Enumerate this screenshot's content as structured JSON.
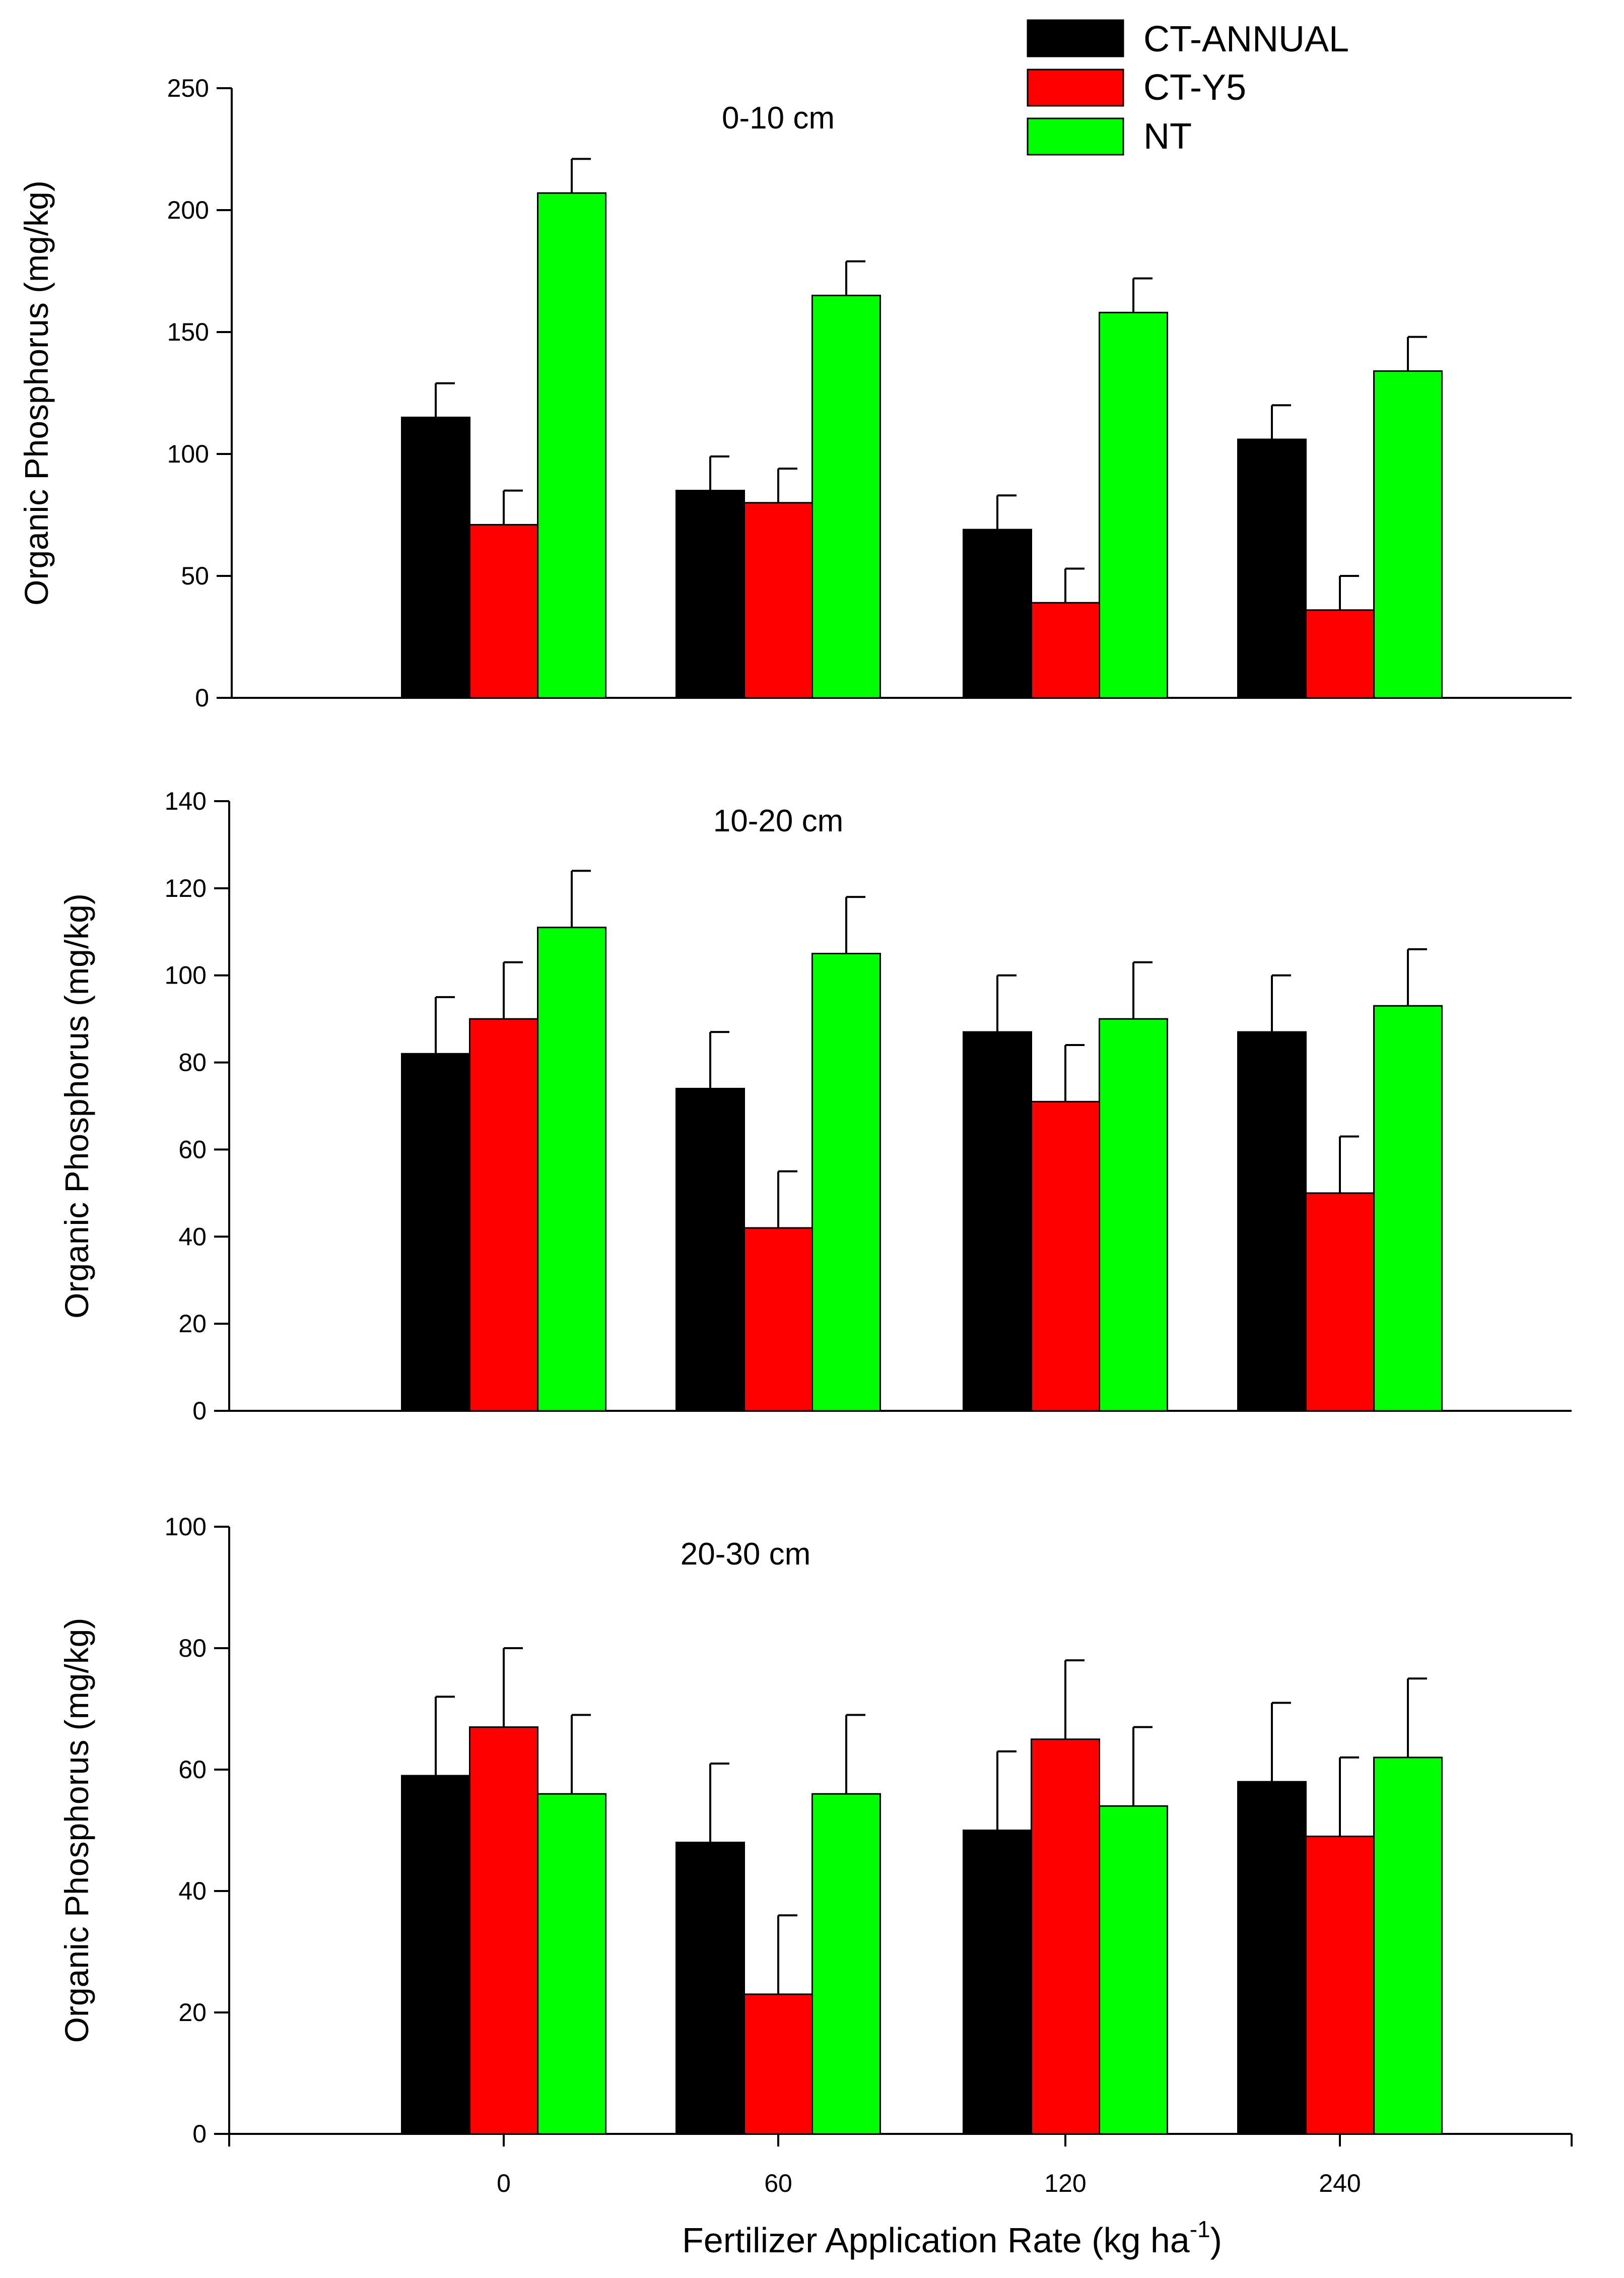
{
  "legend": [
    {
      "name": "CT-ANNUAL",
      "color": "#000000"
    },
    {
      "name": "CT-Y5",
      "color": "#ff0000"
    },
    {
      "name": "NT",
      "color": "#00ff00"
    }
  ],
  "x_axis": {
    "label_main": "Fertilizer Application Rate (kg ha",
    "label_sup": "-1",
    "label_end": ")"
  },
  "chart_data": [
    {
      "type": "bar",
      "title": "0-10 cm",
      "categories": [
        "0",
        "60",
        "120",
        "240"
      ],
      "ylabel": "Organic Phosphorus (mg/kg)",
      "xlabel": "Fertilizer Application Rate (kg ha-1)",
      "ylim": [
        0,
        250
      ],
      "yticks": [
        0,
        50,
        100,
        150,
        200,
        250
      ],
      "yticklabels": [
        "0",
        "50",
        "100",
        "150",
        "200",
        "250"
      ],
      "series": [
        {
          "name": "CT-ANNUAL",
          "values": [
            115,
            85,
            69,
            106
          ],
          "errors": [
            14,
            14,
            14,
            14
          ]
        },
        {
          "name": "CT-Y5",
          "values": [
            71,
            80,
            39,
            36
          ],
          "errors": [
            14,
            14,
            14,
            14
          ]
        },
        {
          "name": "NT",
          "values": [
            207,
            165,
            158,
            134
          ],
          "errors": [
            14,
            14,
            14,
            14
          ]
        }
      ]
    },
    {
      "type": "bar",
      "title": "10-20 cm",
      "categories": [
        "0",
        "60",
        "120",
        "240"
      ],
      "ylabel": "Organic Phosphorus (mg/kg)",
      "xlabel": "Fertilizer Application Rate (kg ha-1)",
      "ylim": [
        0,
        140
      ],
      "yticks": [
        0,
        20,
        40,
        60,
        80,
        100,
        120,
        140
      ],
      "yticklabels": [
        "0",
        "20",
        "40",
        "60",
        "80",
        "100",
        "120",
        "140"
      ],
      "series": [
        {
          "name": "CT-ANNUAL",
          "values": [
            82,
            74,
            87,
            87
          ],
          "errors": [
            13,
            13,
            13,
            13
          ]
        },
        {
          "name": "CT-Y5",
          "values": [
            90,
            42,
            71,
            50
          ],
          "errors": [
            13,
            13,
            13,
            13
          ]
        },
        {
          "name": "NT",
          "values": [
            111,
            105,
            90,
            93
          ],
          "errors": [
            13,
            13,
            13,
            13
          ]
        }
      ]
    },
    {
      "type": "bar",
      "title": "20-30 cm",
      "categories": [
        "0",
        "60",
        "120",
        "240"
      ],
      "ylabel": "Organic Phosphorus (mg/kg)",
      "xlabel": "Fertilizer Application Rate (kg ha-1)",
      "ylim": [
        0,
        100
      ],
      "yticks": [
        0,
        20,
        40,
        60,
        80,
        100
      ],
      "yticklabels": [
        "0",
        "20",
        "40",
        "60",
        "80",
        "100"
      ],
      "series": [
        {
          "name": "CT-ANNUAL",
          "values": [
            59,
            48,
            50,
            58
          ],
          "errors": [
            13,
            13,
            13,
            13
          ]
        },
        {
          "name": "CT-Y5",
          "values": [
            67,
            23,
            65,
            49
          ],
          "errors": [
            13,
            13,
            13,
            13
          ]
        },
        {
          "name": "NT",
          "values": [
            56,
            56,
            54,
            62
          ],
          "errors": [
            13,
            13,
            13,
            13
          ]
        }
      ]
    }
  ]
}
